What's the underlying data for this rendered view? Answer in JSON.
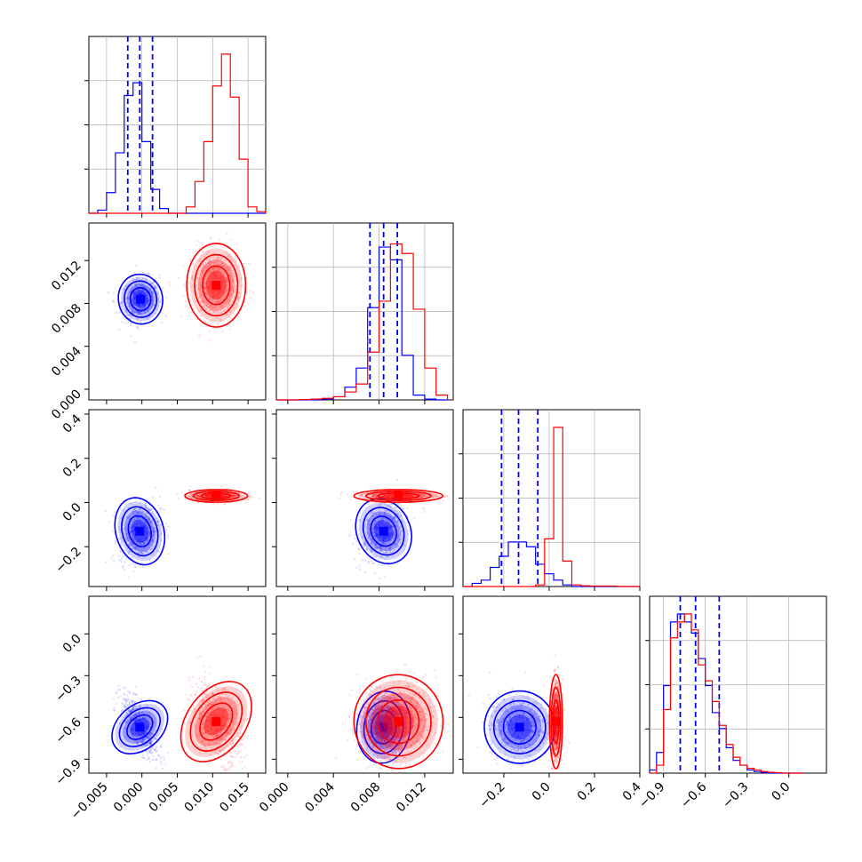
{
  "figure": {
    "type": "corner-plot"
  },
  "colors": {
    "series_a": "#0000ff",
    "series_b": "#ff0000",
    "frame": "#000000",
    "grid": "#b0b0b0"
  },
  "chart_data": [
    {
      "type": "histogram",
      "panel": "hist-p1",
      "xlim": [
        -0.0075,
        0.0175
      ],
      "grid": true,
      "bin_edges": [
        -0.0075,
        -0.00625,
        -0.005,
        -0.00375,
        -0.0025,
        -0.00125,
        0,
        0.00125,
        0.0025,
        0.00375,
        0.005,
        0.00625,
        0.0075,
        0.00875,
        0.01,
        0.01125,
        0.0125,
        0.01375,
        0.015,
        0.01625,
        0.0175
      ],
      "series": [
        {
          "color": "#0000ff",
          "counts": [
            0,
            0.02,
            0.13,
            0.38,
            0.74,
            0.82,
            0.45,
            0.15,
            0.03,
            0,
            0,
            0,
            0,
            0,
            0,
            0,
            0,
            0,
            0,
            0
          ],
          "quantiles": [
            -0.002,
            -0.0003,
            0.0015
          ]
        },
        {
          "color": "#ff0000",
          "counts": [
            0,
            0,
            0,
            0,
            0,
            0,
            0,
            0,
            0,
            0,
            0,
            0.04,
            0.2,
            0.45,
            0.8,
            1.0,
            0.73,
            0.34,
            0.04,
            0.01
          ]
        }
      ]
    },
    {
      "type": "histogram",
      "panel": "hist-p2",
      "xlim": [
        -0.001,
        0.0145
      ],
      "grid": true,
      "bin_edges": [
        -0.001,
        0,
        0.001,
        0.002,
        0.003,
        0.004,
        0.005,
        0.006,
        0.007,
        0.008,
        0.009,
        0.01,
        0.011,
        0.012,
        0.013,
        0.014
      ],
      "series": [
        {
          "color": "#0000ff",
          "counts": [
            0,
            0,
            0,
            0,
            0.005,
            0.02,
            0.08,
            0.2,
            0.58,
            0.96,
            0.88,
            0.28,
            0.03,
            0.005,
            0,
            0
          ],
          "quantiles": [
            0.0072,
            0.0084,
            0.0096
          ]
        },
        {
          "color": "#ff0000",
          "counts": [
            0,
            0,
            0.002,
            0.005,
            0.01,
            0.02,
            0.05,
            0.1,
            0.3,
            0.62,
            0.98,
            0.92,
            0.57,
            0.2,
            0.03,
            0.005
          ]
        }
      ]
    },
    {
      "type": "histogram",
      "panel": "hist-p3",
      "xlim": [
        -0.38,
        0.4
      ],
      "grid": true,
      "bin_edges": [
        -0.38,
        -0.34,
        -0.3,
        -0.26,
        -0.22,
        -0.18,
        -0.14,
        -0.1,
        -0.06,
        -0.02,
        0.02,
        0.06,
        0.1,
        0.14,
        0.18,
        0.22,
        0.26,
        0.3,
        0.34,
        0.38,
        0.4
      ],
      "series": [
        {
          "color": "#0000ff",
          "counts": [
            0,
            0.02,
            0.04,
            0.12,
            0.19,
            0.28,
            0.28,
            0.25,
            0.14,
            0.08,
            0.04,
            0.01,
            0,
            0,
            0,
            0,
            0,
            0,
            0,
            0
          ],
          "quantiles": [
            -0.21,
            -0.135,
            -0.05
          ]
        },
        {
          "color": "#ff0000",
          "counts": [
            0,
            0,
            0,
            0,
            0,
            0,
            0,
            0,
            0.01,
            0.3,
            1.0,
            0.16,
            0.01,
            0.005,
            0.003,
            0.003,
            0.003,
            0,
            0,
            0
          ]
        }
      ]
    },
    {
      "type": "histogram",
      "panel": "hist-p4",
      "xlim": [
        -1.0,
        0.27
      ],
      "grid": true,
      "bin_edges": [
        -1.0,
        -0.95,
        -0.9,
        -0.85,
        -0.8,
        -0.75,
        -0.7,
        -0.65,
        -0.6,
        -0.55,
        -0.5,
        -0.45,
        -0.4,
        -0.35,
        -0.3,
        -0.25,
        -0.2,
        -0.15,
        -0.1,
        -0.05,
        0,
        0.05,
        0.1
      ],
      "series": [
        {
          "color": "#0000ff",
          "counts": [
            0.02,
            0.13,
            0.55,
            0.95,
            1.0,
            0.95,
            0.88,
            0.72,
            0.55,
            0.38,
            0.28,
            0.16,
            0.08,
            0.05,
            0.02,
            0.01,
            0.005,
            0,
            0,
            0,
            0,
            0
          ],
          "quantiles": [
            -0.78,
            -0.67,
            -0.5
          ]
        },
        {
          "color": "#ff0000",
          "counts": [
            0,
            0.05,
            0.4,
            0.85,
            0.95,
            1.0,
            0.9,
            0.68,
            0.58,
            0.45,
            0.3,
            0.18,
            0.1,
            0.05,
            0.03,
            0.02,
            0.01,
            0.005,
            0.003,
            0,
            0,
            0
          ]
        }
      ]
    },
    {
      "type": "scatter",
      "panel": "p1-p2",
      "xlim": [
        -0.0075,
        0.0175
      ],
      "ylim": [
        -0.001,
        0.0155
      ],
      "series": [
        {
          "color": "#0000ff",
          "center": [
            -0.0002,
            0.0084
          ],
          "spread": [
            0.0012,
            0.0009
          ],
          "rho": 0.15
        },
        {
          "color": "#ff0000",
          "center": [
            0.0105,
            0.0097
          ],
          "spread": [
            0.0016,
            0.0015
          ],
          "rho": 0.0
        }
      ]
    },
    {
      "type": "scatter",
      "panel": "p1-p3",
      "xlim": [
        -0.0075,
        0.0175
      ],
      "ylim": [
        -0.38,
        0.42
      ],
      "series": [
        {
          "color": "#0000ff",
          "center": [
            -0.0003,
            -0.13
          ],
          "spread": [
            0.0013,
            0.06
          ],
          "rho": 0.2
        },
        {
          "color": "#ff0000",
          "center": [
            0.0105,
            0.03
          ],
          "spread": [
            0.0017,
            0.011
          ],
          "rho": 0.0
        }
      ]
    },
    {
      "type": "scatter",
      "panel": "p1-p4",
      "xlim": [
        -0.0075,
        0.0175
      ],
      "ylim": [
        -1.0,
        0.27
      ],
      "series": [
        {
          "color": "#0000ff",
          "center": [
            -0.0003,
            -0.67
          ],
          "spread": [
            0.0012,
            0.1
          ],
          "rho": -0.7
        },
        {
          "color": "#ff0000",
          "center": [
            0.0105,
            -0.63
          ],
          "spread": [
            0.0016,
            0.13
          ],
          "rho": -0.45
        }
      ]
    },
    {
      "type": "scatter",
      "panel": "p2-p3",
      "xlim": [
        -0.001,
        0.0145
      ],
      "ylim": [
        -0.38,
        0.42
      ],
      "series": [
        {
          "color": "#0000ff",
          "center": [
            0.0084,
            -0.13
          ],
          "spread": [
            0.0009,
            0.06
          ],
          "rho": 0.35
        },
        {
          "color": "#ff0000",
          "center": [
            0.0097,
            0.03
          ],
          "spread": [
            0.0015,
            0.011
          ],
          "rho": 0.0
        }
      ]
    },
    {
      "type": "scatter",
      "panel": "p2-p4",
      "xlim": [
        -0.001,
        0.0145
      ],
      "ylim": [
        -1.0,
        0.27
      ],
      "series": [
        {
          "color": "#0000ff",
          "center": [
            0.0084,
            -0.67
          ],
          "spread": [
            0.0009,
            0.1
          ],
          "rho": -0.1
        },
        {
          "color": "#ff0000",
          "center": [
            0.0097,
            -0.63
          ],
          "spread": [
            0.0015,
            0.13
          ],
          "rho": 0.1
        }
      ]
    },
    {
      "type": "scatter",
      "panel": "p3-p4",
      "xlim": [
        -0.38,
        0.4
      ],
      "ylim": [
        -1.0,
        0.27
      ],
      "series": [
        {
          "color": "#0000ff",
          "center": [
            -0.13,
            -0.67
          ],
          "spread": [
            0.06,
            0.1
          ],
          "rho": 0.0
        },
        {
          "color": "#ff0000",
          "center": [
            0.03,
            -0.63
          ],
          "spread": [
            0.011,
            0.13
          ],
          "rho": 0.0
        }
      ]
    }
  ],
  "ticks": {
    "x_p1": [
      "−0.005",
      "0.000",
      "0.005",
      "0.010",
      "0.015"
    ],
    "x_p2": [
      "0.000",
      "0.004",
      "0.008",
      "0.012"
    ],
    "x_p3": [
      "−0.2",
      "0.0",
      "0.2",
      "0.4"
    ],
    "x_p4": [
      "−0.9",
      "−0.6",
      "−0.3",
      "0.0"
    ],
    "y_p2": [
      "0.000",
      "0.004",
      "0.008",
      "0.012"
    ],
    "y_p3": [
      "−0.2",
      "0.0",
      "0.2",
      "0.4"
    ],
    "y_p4": [
      "−0.9",
      "−0.6",
      "−0.3",
      "0.0"
    ]
  },
  "tick_values": {
    "p1": [
      -0.005,
      0.0,
      0.005,
      0.01,
      0.015
    ],
    "p2": [
      0.0,
      0.004,
      0.008,
      0.012
    ],
    "p3": [
      -0.2,
      0.0,
      0.2,
      0.4
    ],
    "p4": [
      -0.9,
      -0.6,
      -0.3,
      0.0
    ]
  }
}
